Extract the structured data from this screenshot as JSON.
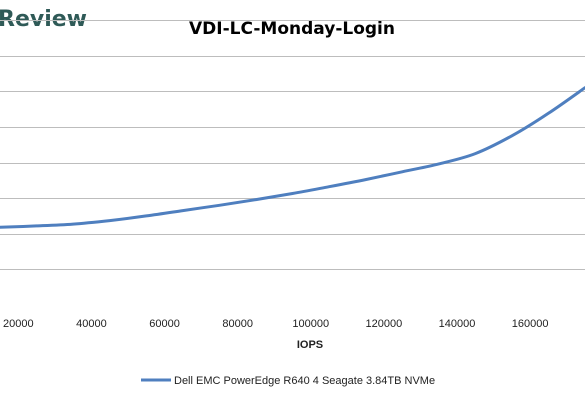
{
  "logo_text": "Review",
  "colors": {
    "logo": "#2f5a57",
    "series": "#4f7fbf",
    "grid": "#bdbdbd"
  },
  "chart_data": {
    "type": "line",
    "title": "VDI-LC-Monday-Login",
    "xlabel": "IOPS",
    "ylabel": "",
    "xlim": [
      15000,
      175000
    ],
    "ylim": [
      0,
      8
    ],
    "x_ticks": [
      20000,
      40000,
      60000,
      80000,
      100000,
      120000,
      140000,
      160000
    ],
    "x_tick_labels": [
      "20000",
      "40000",
      "60000",
      "80000",
      "100000",
      "120000",
      "140000",
      "160000"
    ],
    "y_ticks": [
      1,
      2,
      3,
      4,
      5,
      6,
      7,
      8
    ],
    "grid": true,
    "legend_position": "bottom",
    "series": [
      {
        "name": "Dell EMC PowerEdge R640 4 Seagate 3.84TB NVMe",
        "x": [
          15000,
          25000,
          35000,
          45000,
          55000,
          65000,
          75000,
          85000,
          95000,
          105000,
          115000,
          125000,
          135000,
          145000,
          155000,
          165000,
          175000
        ],
        "y": [
          2.18,
          2.22,
          2.27,
          2.37,
          2.5,
          2.65,
          2.8,
          2.96,
          3.13,
          3.32,
          3.52,
          3.74,
          3.96,
          4.25,
          4.75,
          5.38,
          6.1
        ]
      }
    ]
  }
}
